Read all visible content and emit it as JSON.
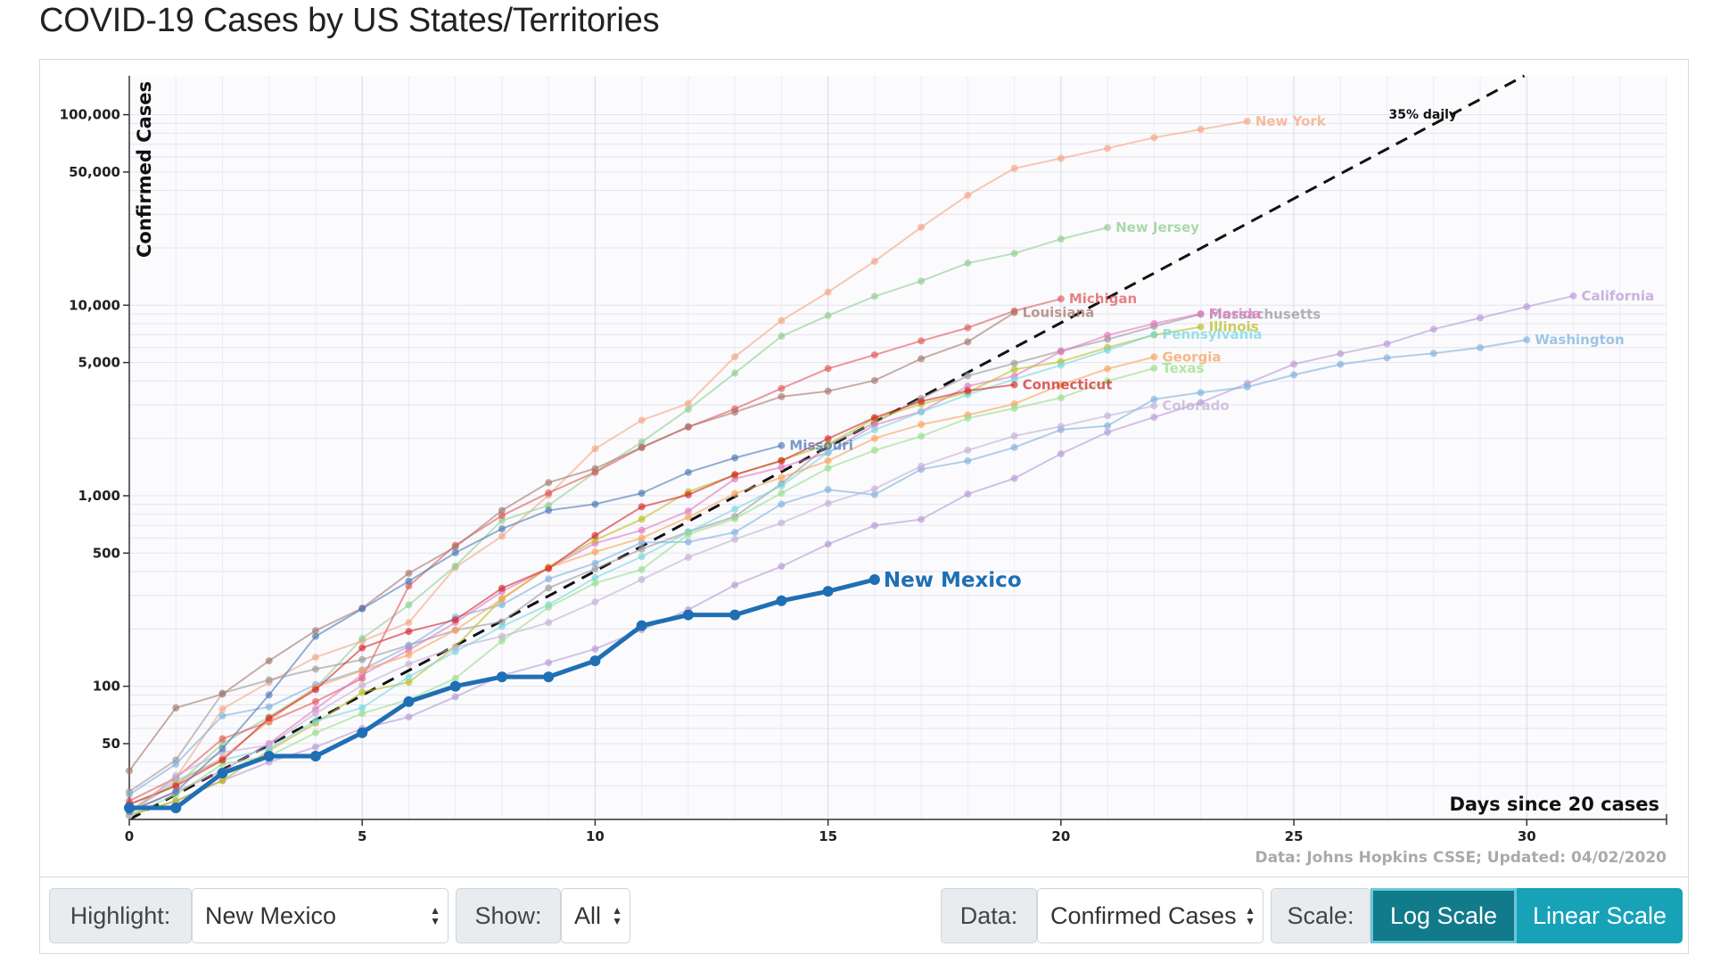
{
  "title": "COVID-19 Cases by US States/Territories",
  "chart_data": {
    "type": "line",
    "yscale": "log",
    "xlim": [
      0,
      33
    ],
    "ylim": [
      20,
      160000
    ],
    "x_ticks": [
      0,
      5,
      10,
      15,
      20,
      25,
      30
    ],
    "y_ticks": [
      {
        "v": 50,
        "label": "50"
      },
      {
        "v": 100,
        "label": "100"
      },
      {
        "v": 500,
        "label": "500"
      },
      {
        "v": 1000,
        "label": "1,000"
      },
      {
        "v": 5000,
        "label": "5,000"
      },
      {
        "v": 10000,
        "label": "10,000"
      },
      {
        "v": 50000,
        "label": "50,000"
      },
      {
        "v": 100000,
        "label": "100,000"
      }
    ],
    "xlabel": "Days since 20 cases",
    "ylabel": "Confirmed Cases",
    "source": "Data: Johns Hopkins CSSE; Updated: 04/02/2020",
    "reference_line": {
      "label": "35% daily",
      "start": 20,
      "daily_growth": 0.35
    },
    "highlighted": "New Mexico",
    "series": [
      {
        "name": "New Mexico",
        "color": "#1f6fb4",
        "values": [
          23,
          23,
          35,
          43,
          43,
          57,
          83,
          100,
          112,
          112,
          136,
          208,
          237,
          237,
          281,
          315,
          363
        ]
      },
      {
        "name": "New York",
        "color": "#f4a582",
        "values": [
          22,
          33,
          76,
          105,
          142,
          173,
          216,
          421,
          613,
          1006,
          1764,
          2490,
          3050,
          5365,
          8310,
          11710,
          17000,
          25680,
          37800,
          52300,
          59000,
          66600,
          75800,
          83700,
          92400
        ]
      },
      {
        "name": "New Jersey",
        "color": "#8fce8f",
        "values": [
          24,
          30,
          50,
          69,
          98,
          178,
          267,
          427,
          742,
          890,
          1327,
          1914,
          2844,
          4402,
          6876,
          8825,
          11124,
          13386,
          16636,
          18696,
          22255,
          25590
        ]
      },
      {
        "name": "Massachusetts",
        "color": "#999999",
        "values": [
          28,
          41,
          92,
          108,
          123,
          138,
          164,
          197,
          218,
          328,
          413,
          525,
          646,
          777,
          1159,
          1838,
          2417,
          3240,
          4257,
          4955,
          5752,
          6620,
          7738,
          8966
        ]
      },
      {
        "name": "California",
        "color": "#b99ad6",
        "values": [
          21,
          25,
          32,
          40,
          48,
          60,
          69,
          88,
          114,
          133,
          157,
          198,
          252,
          340,
          426,
          557,
          698,
          751,
          1020,
          1233,
          1661,
          2155,
          2582,
          3082,
          3882,
          4909,
          5565,
          6266,
          7482,
          8582,
          9816,
          11190
        ]
      },
      {
        "name": "Washington",
        "color": "#7fb1de",
        "values": [
          27,
          39,
          70,
          78,
          102,
          122,
          162,
          231,
          268,
          366,
          442,
          568,
          572,
          643,
          904,
          1076,
          1014,
          1376,
          1524,
          1793,
          2221,
          2328,
          3207,
          3477,
          3723,
          4310,
          4896,
          5292,
          5588,
          5984,
          6585
        ]
      },
      {
        "name": "Michigan",
        "color": "#e15759",
        "values": [
          25,
          33,
          53,
          65,
          83,
          110,
          336,
          549,
          787,
          1035,
          1328,
          1791,
          2294,
          2856,
          3657,
          4650,
          5486,
          6498,
          7615,
          9334,
          10791
        ]
      },
      {
        "name": "Louisiana",
        "color": "#a6766b",
        "values": [
          36,
          77,
          91,
          136,
          196,
          257,
          392,
          538,
          837,
          1172,
          1388,
          1795,
          2305,
          2746,
          3315,
          3540,
          4025,
          5237,
          6424,
          9150
        ]
      },
      {
        "name": "Florida",
        "color": "#e377c2",
        "values": [
          22,
          28,
          36,
          50,
          76,
          115,
          155,
          216,
          314,
          417,
          563,
          659,
          830,
          1227,
          1412,
          1682,
          2355,
          2765,
          3763,
          4246,
          5704,
          6956,
          8010,
          9008
        ]
      },
      {
        "name": "Illinois",
        "color": "#bcbd22",
        "values": [
          21,
          25,
          32,
          46,
          64,
          93,
          105,
          161,
          288,
          422,
          585,
          753,
          1049,
          1285,
          1535,
          1865,
          2538,
          3024,
          3491,
          4596,
          5056,
          5994,
          6980,
          7695
        ]
      },
      {
        "name": "Pennsylvania",
        "color": "#76d7e0",
        "values": [
          22,
          32,
          41,
          47,
          66,
          77,
          112,
          152,
          206,
          268,
          371,
          479,
          644,
          851,
          1127,
          1687,
          2218,
          2751,
          3394,
          4087,
          4843,
          5805,
          7016
        ]
      },
      {
        "name": "Georgia",
        "color": "#f7a35c",
        "values": [
          22,
          31,
          42,
          66,
          99,
          121,
          146,
          197,
          287,
          420,
          507,
          600,
          772,
          1026,
          1247,
          1525,
          2000,
          2366,
          2651,
          3032,
          3817,
          4638,
          5348
        ]
      },
      {
        "name": "Texas",
        "color": "#98df8a",
        "values": [
          21,
          27,
          39,
          43,
          57,
          72,
          85,
          110,
          173,
          260,
          348,
          410,
          627,
          757,
          1031,
          1396,
          1731,
          2052,
          2552,
          2877,
          3266,
          3997,
          4669
        ]
      },
      {
        "name": "Connecticut",
        "color": "#d62728",
        "values": [
          24,
          30,
          41,
          68,
          96,
          159,
          194,
          223,
          327,
          415,
          618,
          875,
          1012,
          1291,
          1524,
          1993,
          2571,
          3128,
          3557,
          3824
        ]
      },
      {
        "name": "Colorado",
        "color": "#c5b0d5",
        "values": [
          21,
          34,
          45,
          49,
          72,
          101,
          131,
          160,
          183,
          216,
          277,
          363,
          475,
          591,
          720,
          912,
          1086,
          1430,
          1734,
          2061,
          2311,
          2627,
          2966
        ]
      },
      {
        "name": "Missouri",
        "color": "#4a7ab5",
        "values": [
          22,
          28,
          47,
          90,
          183,
          255,
          356,
          502,
          670,
          838,
          903,
          1031,
          1327,
          1581,
          1834
        ]
      }
    ]
  },
  "controls": {
    "highlight_label": "Highlight:",
    "highlight_value": "New Mexico",
    "show_label": "Show:",
    "show_value": "All",
    "data_label": "Data:",
    "data_value": "Confirmed Cases",
    "scale_label": "Scale:",
    "log_button": "Log Scale",
    "linear_button": "Linear Scale"
  }
}
